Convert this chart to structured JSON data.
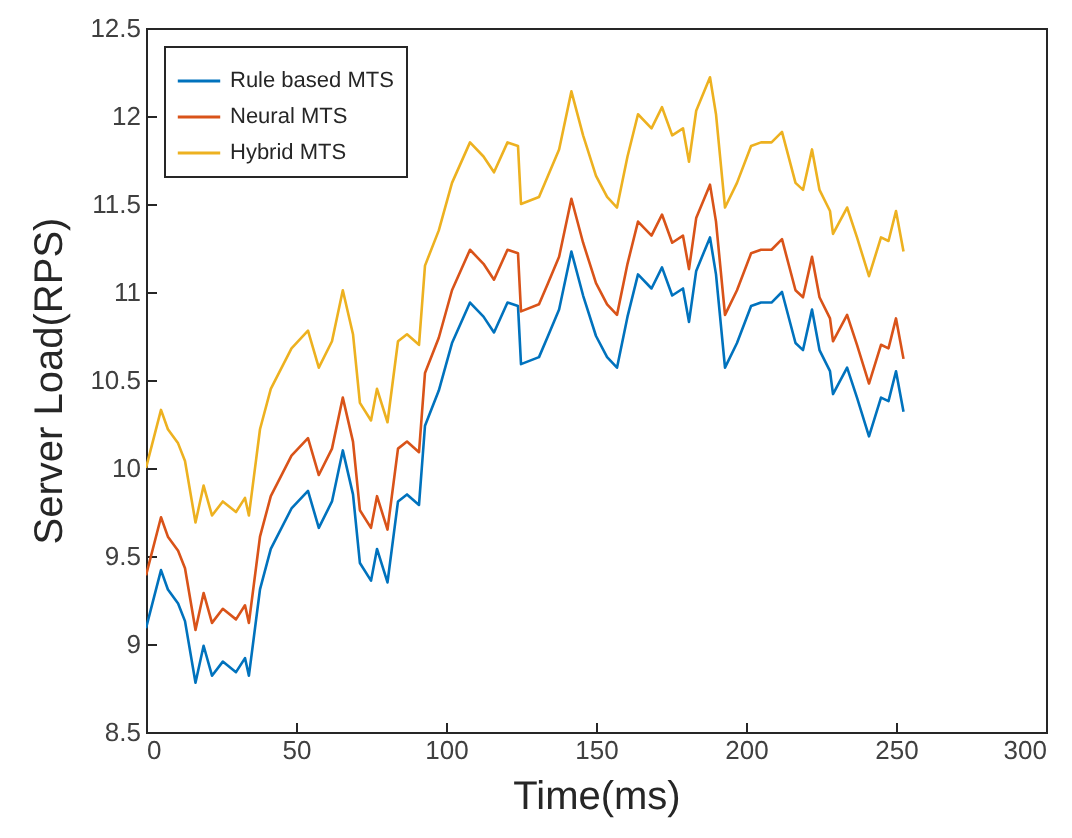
{
  "chart_data": {
    "type": "line",
    "xlabel": "Time(ms)",
    "ylabel": "Server Load(RPS)",
    "x": [
      0,
      5,
      7.3,
      10.7,
      13,
      16.5,
      19.2,
      22,
      25.6,
      30,
      33,
      34.3,
      38,
      41.6,
      48.5,
      54,
      57.6,
      62,
      65.6,
      69,
      71.3,
      75,
      77,
      80.5,
      84,
      87,
      91,
      93,
      97.6,
      102,
      108,
      112.5,
      116,
      120.5,
      124,
      125,
      131,
      134,
      137.7,
      141.8,
      145.7,
      150,
      153.7,
      157,
      160.5,
      164,
      168.5,
      172,
      175.4,
      179,
      181,
      183.4,
      188,
      190,
      193,
      197,
      201.7,
      205,
      208.5,
      212,
      216.5,
      219,
      222,
      224.5,
      228,
      229,
      233.7,
      237,
      241,
      245,
      247.5,
      250,
      252.5
    ],
    "series": [
      {
        "name": "Rule based MTS",
        "color": "#0072bd",
        "values": [
          9.09,
          9.42,
          9.31,
          9.23,
          9.13,
          8.78,
          8.99,
          8.82,
          8.9,
          8.84,
          8.92,
          8.82,
          9.31,
          9.54,
          9.77,
          9.87,
          9.66,
          9.81,
          10.1,
          9.85,
          9.46,
          9.36,
          9.54,
          9.35,
          9.81,
          9.85,
          9.79,
          10.24,
          10.44,
          10.71,
          10.94,
          10.86,
          10.77,
          10.94,
          10.92,
          10.59,
          10.63,
          10.75,
          10.9,
          11.23,
          10.98,
          10.75,
          10.63,
          10.57,
          10.86,
          11.1,
          11.02,
          11.14,
          10.98,
          11.02,
          10.83,
          11.12,
          11.31,
          11.1,
          10.57,
          10.71,
          10.92,
          10.94,
          10.94,
          11.0,
          10.71,
          10.67,
          10.9,
          10.67,
          10.55,
          10.42,
          10.57,
          10.4,
          10.18,
          10.4,
          10.38,
          10.55,
          10.32
        ]
      },
      {
        "name": "Neural MTS",
        "color": "#d95319",
        "values": [
          9.39,
          9.72,
          9.61,
          9.53,
          9.43,
          9.08,
          9.29,
          9.12,
          9.2,
          9.14,
          9.22,
          9.12,
          9.61,
          9.84,
          10.07,
          10.17,
          9.96,
          10.11,
          10.4,
          10.15,
          9.76,
          9.66,
          9.84,
          9.65,
          10.11,
          10.15,
          10.09,
          10.54,
          10.74,
          11.01,
          11.24,
          11.16,
          11.07,
          11.24,
          11.22,
          10.89,
          10.93,
          11.05,
          11.2,
          11.53,
          11.28,
          11.05,
          10.93,
          10.87,
          11.16,
          11.4,
          11.32,
          11.44,
          11.28,
          11.32,
          11.13,
          11.42,
          11.61,
          11.4,
          10.87,
          11.01,
          11.22,
          11.24,
          11.24,
          11.3,
          11.01,
          10.97,
          11.2,
          10.97,
          10.85,
          10.72,
          10.87,
          10.7,
          10.48,
          10.7,
          10.68,
          10.85,
          10.62
        ]
      },
      {
        "name": "Hybrid MTS",
        "color": "#edb120",
        "values": [
          10.0,
          10.33,
          10.22,
          10.14,
          10.04,
          9.69,
          9.9,
          9.73,
          9.81,
          9.75,
          9.83,
          9.73,
          10.22,
          10.45,
          10.68,
          10.78,
          10.57,
          10.72,
          11.01,
          10.76,
          10.37,
          10.27,
          10.45,
          10.26,
          10.72,
          10.76,
          10.7,
          11.15,
          11.35,
          11.62,
          11.85,
          11.77,
          11.68,
          11.85,
          11.83,
          11.5,
          11.54,
          11.66,
          11.81,
          12.14,
          11.89,
          11.66,
          11.54,
          11.48,
          11.77,
          12.01,
          11.93,
          12.05,
          11.89,
          11.93,
          11.74,
          12.03,
          12.22,
          12.01,
          11.48,
          11.62,
          11.83,
          11.85,
          11.85,
          11.91,
          11.62,
          11.58,
          11.81,
          11.58,
          11.46,
          11.33,
          11.48,
          11.31,
          11.09,
          11.31,
          11.29,
          11.46,
          11.23
        ]
      }
    ],
    "xlim": [
      0,
      300
    ],
    "xticks": [
      0,
      50,
      100,
      150,
      200,
      250,
      300
    ],
    "ylim": [
      8.5,
      12.5
    ],
    "yticks": [
      8.5,
      9,
      9.5,
      10,
      10.5,
      11,
      11.5,
      12,
      12.5
    ],
    "legend": "top left",
    "grid": false
  }
}
